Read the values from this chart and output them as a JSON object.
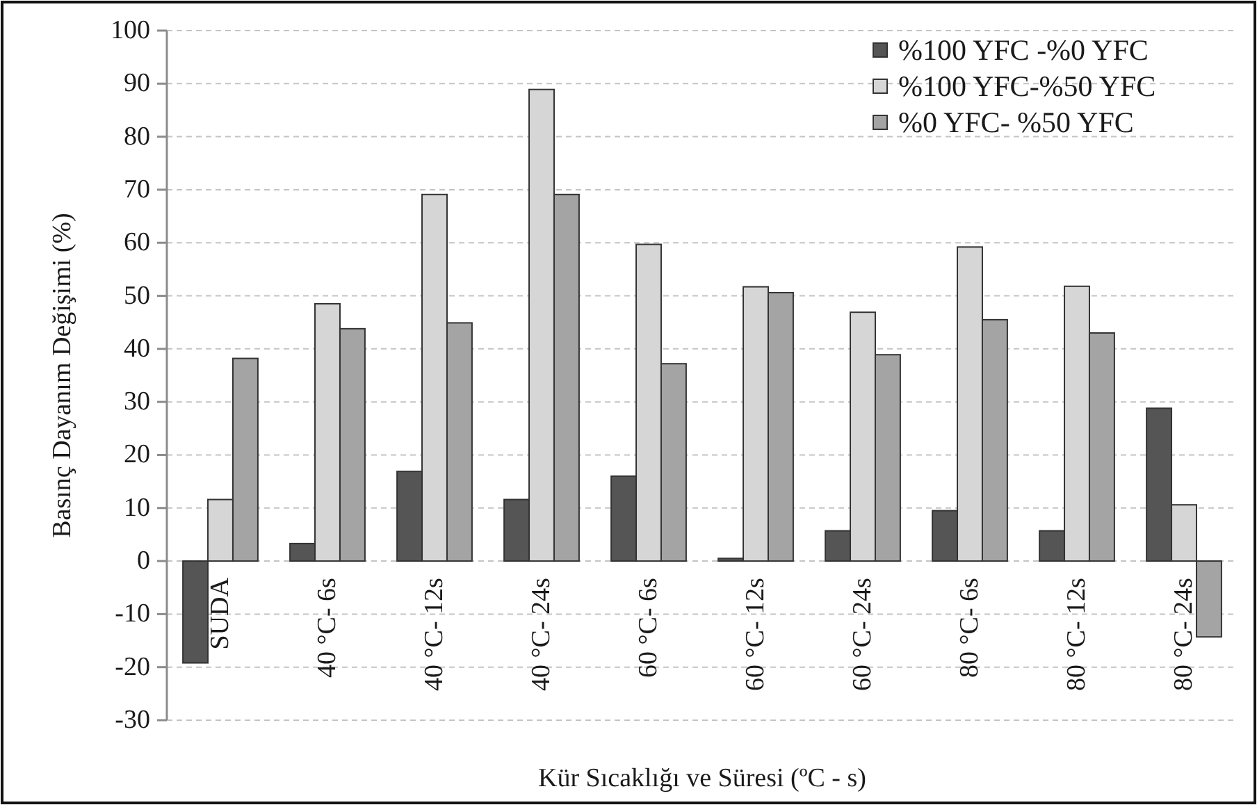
{
  "chart_data": {
    "type": "bar",
    "xlabel": "Kür Sıcaklığı ve Süresi (ºC - s)",
    "ylabel": "Basınç Dayanım Değişimi (%)",
    "categories": [
      "SUDA",
      "40 °C- 6s",
      "40 °C- 12s",
      "40 °C- 24s",
      "60 °C- 6s",
      "60 °C- 12s",
      "60 °C- 24s",
      "80 °C- 6s",
      "80 °C- 12s",
      "80 °C- 24s"
    ],
    "series": [
      {
        "name": "%100 YFC -%0 YFC",
        "color": "#555555",
        "values": [
          -19.2,
          3.3,
          16.9,
          11.6,
          16,
          0.5,
          5.7,
          9.5,
          5.7,
          28.8
        ]
      },
      {
        "name": "%100 YFC-%50 YFC",
        "color": "#d6d6d6",
        "values": [
          11.6,
          48.5,
          69.1,
          88.9,
          59.7,
          51.7,
          46.9,
          59.2,
          51.8,
          10.6
        ]
      },
      {
        "name": "%0 YFC- %50 YFC",
        "color": "#a4a4a4",
        "values": [
          38.2,
          43.8,
          44.9,
          69.1,
          37.2,
          50.6,
          38.9,
          45.5,
          43,
          -14.3
        ]
      }
    ],
    "ylim": [
      -30,
      100
    ],
    "yticks": [
      -30,
      -20,
      -10,
      0,
      10,
      20,
      30,
      40,
      50,
      60,
      70,
      80,
      90,
      100
    ],
    "grid": "y",
    "legend": "top right"
  }
}
